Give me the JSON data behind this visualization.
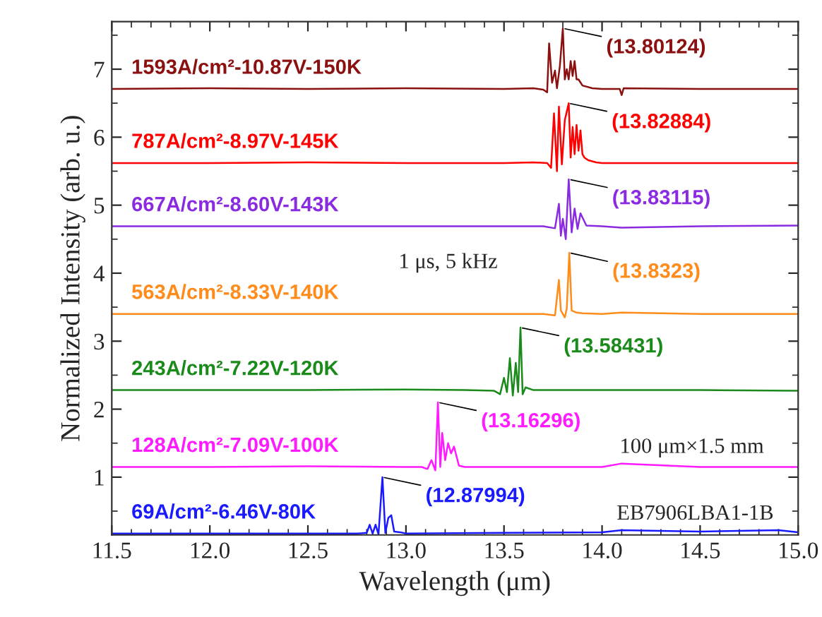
{
  "chart_data": {
    "type": "line",
    "xlabel": "Wavelength (μm)",
    "ylabel": "Normalized Intensity (arb. u.)",
    "xlim": [
      11.5,
      15.0
    ],
    "ylim": [
      0.15,
      7.7
    ],
    "xticks": [
      11.5,
      {
        "value": 12,
        "label": "12.0"
      },
      12.5,
      {
        "value": 13,
        "label": "13.0"
      },
      13.5,
      {
        "value": 14,
        "label": "14.0"
      },
      14.5,
      {
        "value": 15,
        "label": "15.0"
      }
    ],
    "yticks": [
      1,
      2,
      3,
      4,
      5,
      6,
      7
    ],
    "grid": false,
    "marker": "none",
    "line_style": "solid",
    "series": [
      {
        "name": "1593A/cm²-10.87V-150K",
        "color": "#8b1010",
        "x": [
          11.5,
          12.0,
          12.5,
          13.0,
          13.5,
          13.65,
          13.7,
          13.72,
          13.73,
          13.745,
          13.76,
          13.77,
          13.785,
          13.8,
          13.81,
          13.82,
          13.83,
          13.84,
          13.85,
          13.86,
          13.87,
          13.88,
          13.9,
          13.95,
          14.0,
          14.09,
          14.1,
          14.11,
          14.5,
          15.0
        ],
        "values": [
          6.71,
          6.72,
          6.71,
          6.72,
          6.71,
          6.72,
          6.7,
          6.66,
          7.38,
          6.8,
          6.98,
          6.72,
          7.05,
          7.6,
          6.85,
          7.0,
          6.85,
          7.12,
          6.9,
          7.12,
          6.85,
          6.85,
          6.76,
          6.72,
          6.71,
          6.71,
          6.62,
          6.72,
          6.71,
          6.71
        ]
      },
      {
        "name": "787A/cm²-8.97V-145K",
        "color": "#ff0000",
        "x": [
          11.5,
          12.0,
          12.5,
          13.0,
          13.5,
          13.65,
          13.72,
          13.74,
          13.755,
          13.77,
          13.78,
          13.795,
          13.81,
          13.83,
          13.84,
          13.85,
          13.86,
          13.87,
          13.88,
          13.89,
          13.9,
          13.91,
          13.93,
          13.97,
          14.0,
          14.5,
          15.0
        ],
        "values": [
          5.62,
          5.62,
          5.63,
          5.62,
          5.62,
          5.63,
          5.62,
          5.55,
          6.35,
          5.5,
          6.45,
          5.6,
          6.25,
          6.5,
          5.7,
          6.15,
          5.75,
          6.18,
          5.8,
          6.1,
          5.75,
          5.7,
          5.66,
          5.63,
          5.62,
          5.62,
          5.62
        ]
      },
      {
        "name": "667A/cm²-8.60V-143K",
        "color": "#8a2be2",
        "x": [
          11.5,
          12.0,
          12.5,
          13.0,
          13.5,
          13.7,
          13.76,
          13.78,
          13.79,
          13.8,
          13.815,
          13.83,
          13.845,
          13.86,
          13.875,
          13.89,
          13.92,
          14.0,
          14.1,
          14.5,
          15.0
        ],
        "values": [
          4.69,
          4.69,
          4.69,
          4.69,
          4.69,
          4.69,
          4.66,
          5.02,
          4.55,
          4.8,
          4.5,
          5.38,
          4.6,
          4.95,
          4.65,
          4.88,
          4.7,
          4.69,
          4.67,
          4.69,
          4.7
        ]
      },
      {
        "name": "563A/cm²-8.33V-140K",
        "color": "#ff8c1a",
        "x": [
          11.5,
          12.0,
          12.5,
          13.0,
          13.5,
          13.7,
          13.76,
          13.78,
          13.79,
          13.81,
          13.82,
          13.833,
          13.845,
          13.87,
          13.9,
          14.0,
          14.1,
          14.5,
          15.0
        ],
        "values": [
          3.4,
          3.4,
          3.4,
          3.4,
          3.4,
          3.4,
          3.38,
          3.9,
          3.45,
          3.35,
          3.48,
          4.3,
          3.45,
          3.42,
          3.41,
          3.4,
          3.42,
          3.4,
          3.4
        ]
      },
      {
        "name": "243A/cm²-7.22V-120K",
        "color": "#1a8a1a",
        "x": [
          11.5,
          12.0,
          12.5,
          13.0,
          13.3,
          13.45,
          13.48,
          13.5,
          13.515,
          13.53,
          13.545,
          13.56,
          13.572,
          13.584,
          13.595,
          13.61,
          13.65,
          13.8,
          14.0,
          14.5,
          15.0
        ],
        "values": [
          2.28,
          2.28,
          2.28,
          2.29,
          2.28,
          2.27,
          2.22,
          2.46,
          2.25,
          2.75,
          2.2,
          2.68,
          2.25,
          3.2,
          2.22,
          2.32,
          2.28,
          2.28,
          2.28,
          2.28,
          2.27
        ]
      },
      {
        "name": "128A/cm²-7.09V-100K",
        "color": "#ff1aff",
        "x": [
          11.5,
          12.0,
          12.5,
          13.0,
          13.08,
          13.11,
          13.13,
          13.15,
          13.163,
          13.175,
          13.185,
          13.2,
          13.215,
          13.23,
          13.245,
          13.27,
          13.3,
          13.5,
          14.0,
          14.1,
          14.5,
          15.0
        ],
        "values": [
          1.15,
          1.15,
          1.16,
          1.15,
          1.15,
          1.12,
          1.25,
          1.1,
          2.1,
          1.15,
          1.65,
          1.25,
          1.5,
          1.35,
          1.45,
          1.17,
          1.15,
          1.15,
          1.15,
          1.2,
          1.15,
          1.15
        ]
      },
      {
        "name": "69A/cm²-6.46V-80K",
        "color": "#1a1aff",
        "x": [
          11.5,
          12.0,
          12.5,
          12.75,
          12.8,
          12.815,
          12.83,
          12.845,
          12.86,
          12.88,
          12.895,
          12.91,
          12.925,
          12.94,
          12.97,
          13.0,
          13.5,
          14.0,
          14.1,
          14.5,
          14.9,
          15.0
        ],
        "values": [
          0.17,
          0.17,
          0.17,
          0.17,
          0.18,
          0.3,
          0.17,
          0.3,
          0.16,
          1.0,
          0.18,
          0.4,
          0.44,
          0.2,
          0.19,
          0.17,
          0.18,
          0.19,
          0.22,
          0.2,
          0.22,
          0.19
        ]
      }
    ],
    "annotations": [
      {
        "text": "(13.80124)",
        "x": 13.80124,
        "y": 7.6
      },
      {
        "text": "(13.82884)",
        "x": 13.82884,
        "y": 6.5
      },
      {
        "text": "(13.83115)",
        "x": 13.83115,
        "y": 5.38
      },
      {
        "text": "(13.8323)",
        "x": 13.8323,
        "y": 4.3
      },
      {
        "text": "(13.58431)",
        "x": 13.58431,
        "y": 3.2
      },
      {
        "text": "(13.16296)",
        "x": 13.16296,
        "y": 2.1
      },
      {
        "text": "(12.87994)",
        "x": 12.87994,
        "y": 1.0
      },
      "1 μs, 5 kHz",
      "100 μm×1.5 mm",
      "EB7906LBA1-1B"
    ]
  }
}
